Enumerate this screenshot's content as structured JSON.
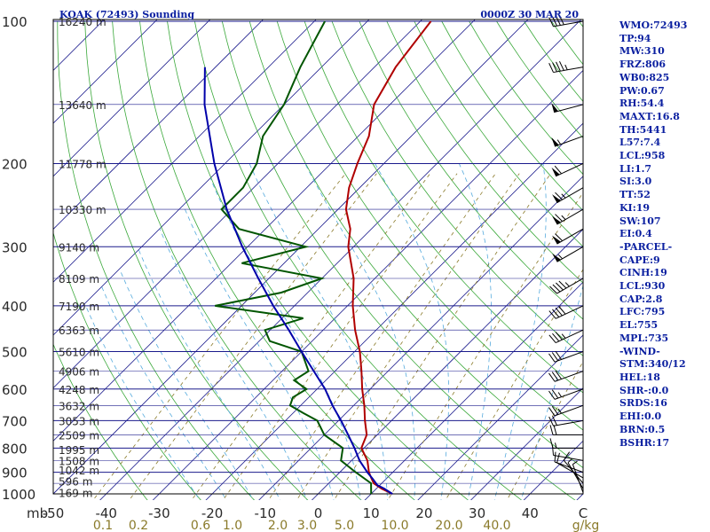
{
  "header": {
    "title": "KOAK (72493) Sounding",
    "datetime": "0000Z 30 MAR 20"
  },
  "stats": [
    "WMO:72493",
    "TP:94",
    "MW:310",
    "FRZ:806",
    "WB0:825",
    "PW:0.67",
    "RH:54.4",
    "MAXT:16.8",
    "TH:5441",
    "L57:7.4",
    "LCL:958",
    "LI:1.7",
    "SI:3.0",
    "TT:52",
    "KI:19",
    "SW:107",
    "EI:0.4",
    "-PARCEL-",
    "CAPE:9",
    "CINH:19",
    "LCL:930",
    "CAP:2.8",
    "LFC:795",
    "EL:755",
    "MPL:735",
    "-WIND-",
    "STM:340/12",
    "HEL:18",
    "SHR-:0.0",
    "SRDS:16",
    "EHI:0.0",
    "BRN:0.5",
    "BSHR:17"
  ],
  "colors": {
    "isobar": "#1a1a8c",
    "isotherm": "#1a1a8c",
    "dry_adiabat": "#3aa83a",
    "moist_adiabat": "#55aadd",
    "mixing_ratio": "#8a7a2a",
    "temperature": "#b00000",
    "dewpoint": "#005500",
    "parcel": "#0000aa",
    "wind_barb": "#000000"
  },
  "chart_data": {
    "type": "line",
    "title": "KOAK (72493) Sounding",
    "xlabel": "",
    "ylabel": "mb",
    "xunit_label": "g/kg",
    "ylim": [
      1000,
      100
    ],
    "xlim": [
      -50,
      50
    ],
    "pressure_levels": [
      1000,
      900,
      800,
      700,
      600,
      500,
      400,
      300,
      200,
      100
    ],
    "pressure_ticks": [
      "1000",
      "900",
      "800",
      "700",
      "600",
      "500",
      "400",
      "300",
      "200",
      "100"
    ],
    "temperature_ticks": [
      "-50",
      "-40",
      "-30",
      "-20",
      "-10",
      "0",
      "10",
      "20",
      "30",
      "40",
      "C"
    ],
    "mixing_ratio_ticks": [
      "0.1",
      "0.2",
      "0.6",
      "1.0",
      "2.0",
      "3.0",
      "5.0",
      "10.0",
      "20.0",
      "40.0",
      "g/kg"
    ],
    "height_labels": [
      {
        "p": 994,
        "label": "169 m"
      },
      {
        "p": 940,
        "label": "596 m"
      },
      {
        "p": 890,
        "label": "1042 m"
      },
      {
        "p": 850,
        "label": "1508 m"
      },
      {
        "p": 805,
        "label": "1995 m"
      },
      {
        "p": 750,
        "label": "2509 m"
      },
      {
        "p": 700,
        "label": "3053 m"
      },
      {
        "p": 650,
        "label": "3632 m"
      },
      {
        "p": 600,
        "label": "4248 m"
      },
      {
        "p": 550,
        "label": "4906 m"
      },
      {
        "p": 500,
        "label": "5610 m"
      },
      {
        "p": 450,
        "label": "6363 m"
      },
      {
        "p": 400,
        "label": "7190 m"
      },
      {
        "p": 350,
        "label": "8109 m"
      },
      {
        "p": 300,
        "label": "9140 m"
      },
      {
        "p": 250,
        "label": "10330 m"
      },
      {
        "p": 200,
        "label": "11778 m"
      },
      {
        "p": 150,
        "label": "13640 m"
      },
      {
        "p": 100,
        "label": "16240 m"
      }
    ],
    "series": [
      {
        "name": "Temperature",
        "points": [
          [
            1000,
            14
          ],
          [
            975,
            11
          ],
          [
            950,
            8.5
          ],
          [
            925,
            7
          ],
          [
            900,
            5.5
          ],
          [
            850,
            3
          ],
          [
            800,
            -0.5
          ],
          [
            750,
            -2
          ],
          [
            700,
            -5
          ],
          [
            650,
            -8
          ],
          [
            600,
            -11.5
          ],
          [
            550,
            -15
          ],
          [
            500,
            -19
          ],
          [
            450,
            -24
          ],
          [
            400,
            -29
          ],
          [
            350,
            -34
          ],
          [
            300,
            -41
          ],
          [
            275,
            -44
          ],
          [
            250,
            -48.5
          ],
          [
            225,
            -52
          ],
          [
            200,
            -55
          ],
          [
            175,
            -58
          ],
          [
            150,
            -63
          ],
          [
            125,
            -66
          ],
          [
            100,
            -68
          ]
        ]
      },
      {
        "name": "Dewpoint",
        "points": [
          [
            1000,
            10
          ],
          [
            950,
            8
          ],
          [
            900,
            3
          ],
          [
            850,
            -2
          ],
          [
            800,
            -4
          ],
          [
            750,
            -10
          ],
          [
            700,
            -14
          ],
          [
            675,
            -18
          ],
          [
            650,
            -22
          ],
          [
            625,
            -23
          ],
          [
            600,
            -22
          ],
          [
            575,
            -26
          ],
          [
            550,
            -25
          ],
          [
            500,
            -30
          ],
          [
            475,
            -38
          ],
          [
            450,
            -41
          ],
          [
            425,
            -36
          ],
          [
            400,
            -55
          ],
          [
            375,
            -45
          ],
          [
            350,
            -40
          ],
          [
            325,
            -58
          ],
          [
            300,
            -49
          ],
          [
            275,
            -65
          ],
          [
            250,
            -72
          ],
          [
            225,
            -72
          ],
          [
            200,
            -74
          ],
          [
            175,
            -78
          ],
          [
            150,
            -80
          ],
          [
            125,
            -84
          ],
          [
            100,
            -88
          ]
        ]
      },
      {
        "name": "Parcel",
        "points": [
          [
            1000,
            14
          ],
          [
            975,
            11.5
          ],
          [
            958,
            9.5
          ],
          [
            930,
            7.5
          ],
          [
            900,
            5.2
          ],
          [
            850,
            1.5
          ],
          [
            800,
            -1.8
          ],
          [
            750,
            -5.5
          ],
          [
            700,
            -9.5
          ],
          [
            650,
            -14
          ],
          [
            600,
            -18.5
          ],
          [
            550,
            -24
          ],
          [
            500,
            -30
          ],
          [
            450,
            -36.5
          ],
          [
            400,
            -44
          ],
          [
            350,
            -52
          ],
          [
            300,
            -61
          ],
          [
            250,
            -71
          ],
          [
            200,
            -82
          ],
          [
            150,
            -95
          ],
          [
            125,
            -102
          ]
        ]
      }
    ],
    "wind_barbs": [
      {
        "p": 994,
        "dir": 340,
        "kt": 5
      },
      {
        "p": 975,
        "dir": 330,
        "kt": 5
      },
      {
        "p": 950,
        "dir": 320,
        "kt": 10
      },
      {
        "p": 925,
        "dir": 300,
        "kt": 10
      },
      {
        "p": 900,
        "dir": 290,
        "kt": 10
      },
      {
        "p": 850,
        "dir": 280,
        "kt": 10
      },
      {
        "p": 800,
        "dir": 270,
        "kt": 15
      },
      {
        "p": 750,
        "dir": 270,
        "kt": 20
      },
      {
        "p": 700,
        "dir": 260,
        "kt": 20
      },
      {
        "p": 650,
        "dir": 250,
        "kt": 25
      },
      {
        "p": 600,
        "dir": 250,
        "kt": 25
      },
      {
        "p": 550,
        "dir": 250,
        "kt": 30
      },
      {
        "p": 500,
        "dir": 250,
        "kt": 30
      },
      {
        "p": 450,
        "dir": 245,
        "kt": 35
      },
      {
        "p": 400,
        "dir": 245,
        "kt": 40
      },
      {
        "p": 350,
        "dir": 240,
        "kt": 45
      },
      {
        "p": 300,
        "dir": 240,
        "kt": 55
      },
      {
        "p": 275,
        "dir": 240,
        "kt": 60
      },
      {
        "p": 250,
        "dir": 240,
        "kt": 65
      },
      {
        "p": 225,
        "dir": 240,
        "kt": 65
      },
      {
        "p": 200,
        "dir": 245,
        "kt": 60
      },
      {
        "p": 175,
        "dir": 250,
        "kt": 55
      },
      {
        "p": 150,
        "dir": 255,
        "kt": 50
      },
      {
        "p": 125,
        "dir": 260,
        "kt": 45
      },
      {
        "p": 100,
        "dir": 260,
        "kt": 40
      }
    ],
    "grid": true
  }
}
